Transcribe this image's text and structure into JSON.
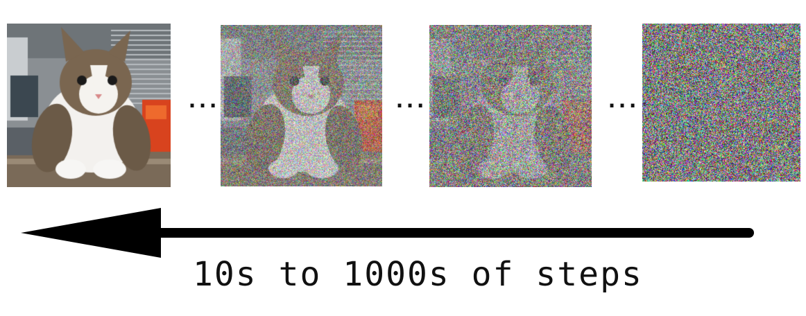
{
  "diagram": {
    "frames": [
      {
        "name": "clean-cat-photo",
        "noise_level": 0.0
      },
      {
        "name": "noisy-cat-step-a",
        "noise_level": 0.55
      },
      {
        "name": "noisy-cat-step-b",
        "noise_level": 0.78
      },
      {
        "name": "pure-noise",
        "noise_level": 1.0
      }
    ],
    "ellipsis": "...",
    "arrow_direction": "left",
    "caption": "10s to 1000s of steps"
  }
}
